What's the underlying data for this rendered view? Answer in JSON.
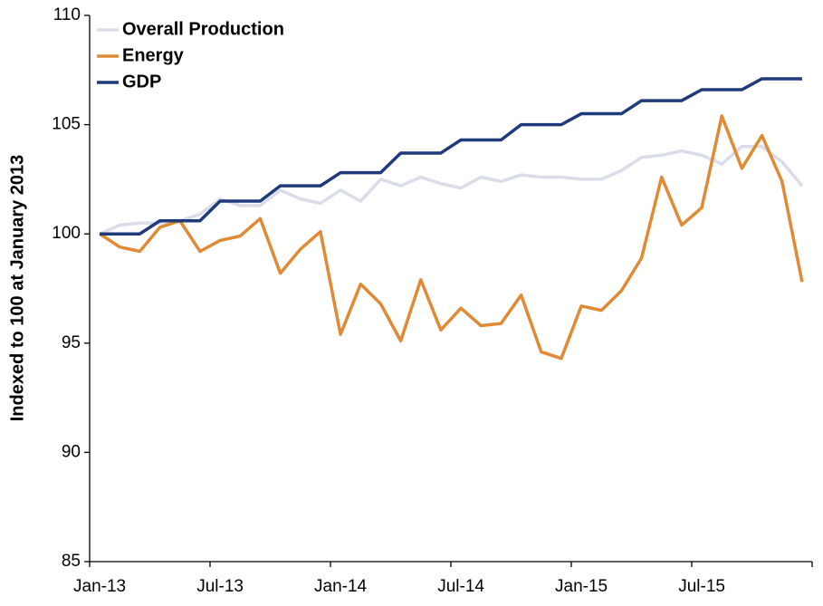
{
  "chart_data": {
    "type": "line",
    "y_label": "Indexed to 100 at January 2013",
    "categories": [
      "Jan-13",
      null,
      null,
      null,
      null,
      null,
      "Jul-13",
      null,
      null,
      null,
      null,
      null,
      "Jan-14",
      null,
      null,
      null,
      null,
      null,
      "Jul-14",
      null,
      null,
      null,
      null,
      null,
      "Jan-15",
      null,
      null,
      null,
      null,
      null,
      "Jul-15",
      null,
      null,
      null,
      null,
      null
    ],
    "ylim": [
      85,
      110
    ],
    "yticks": [
      85,
      90,
      95,
      100,
      105,
      110
    ],
    "grid": false,
    "legend": "top-left",
    "series": [
      {
        "name": "Overall Production",
        "color": "#d9dde9",
        "values": [
          100,
          100.4,
          100.5,
          100.5,
          100.6,
          100.9,
          101.6,
          101.3,
          101.3,
          102.0,
          101.6,
          101.4,
          102.0,
          101.5,
          102.5,
          102.2,
          102.6,
          102.3,
          102.1,
          102.6,
          102.4,
          102.7,
          102.6,
          102.6,
          102.5,
          102.5,
          102.9,
          103.5,
          103.6,
          103.8,
          103.6,
          103.2,
          104.0,
          104.0,
          103.3,
          102.2
        ]
      },
      {
        "name": "Energy",
        "color": "#e08a35",
        "values": [
          100,
          99.4,
          99.2,
          100.3,
          100.6,
          99.2,
          99.7,
          99.9,
          100.7,
          98.2,
          99.3,
          100.1,
          95.4,
          97.7,
          96.8,
          95.1,
          97.9,
          95.6,
          96.6,
          95.8,
          95.9,
          97.2,
          94.6,
          94.3,
          96.7,
          96.5,
          97.4,
          98.9,
          102.6,
          100.4,
          101.2,
          105.4,
          103.0,
          104.5,
          102.4,
          97.8
        ]
      },
      {
        "name": "GDP",
        "color": "#1f3a7a",
        "values": [
          100,
          100,
          100,
          100.6,
          100.6,
          100.6,
          101.5,
          101.5,
          101.5,
          102.2,
          102.2,
          102.2,
          102.8,
          102.8,
          102.8,
          103.7,
          103.7,
          103.7,
          104.3,
          104.3,
          104.3,
          105.0,
          105.0,
          105.0,
          105.5,
          105.5,
          105.5,
          106.1,
          106.1,
          106.1,
          106.6,
          106.6,
          106.6,
          107.1,
          107.1,
          107.1
        ]
      }
    ]
  }
}
